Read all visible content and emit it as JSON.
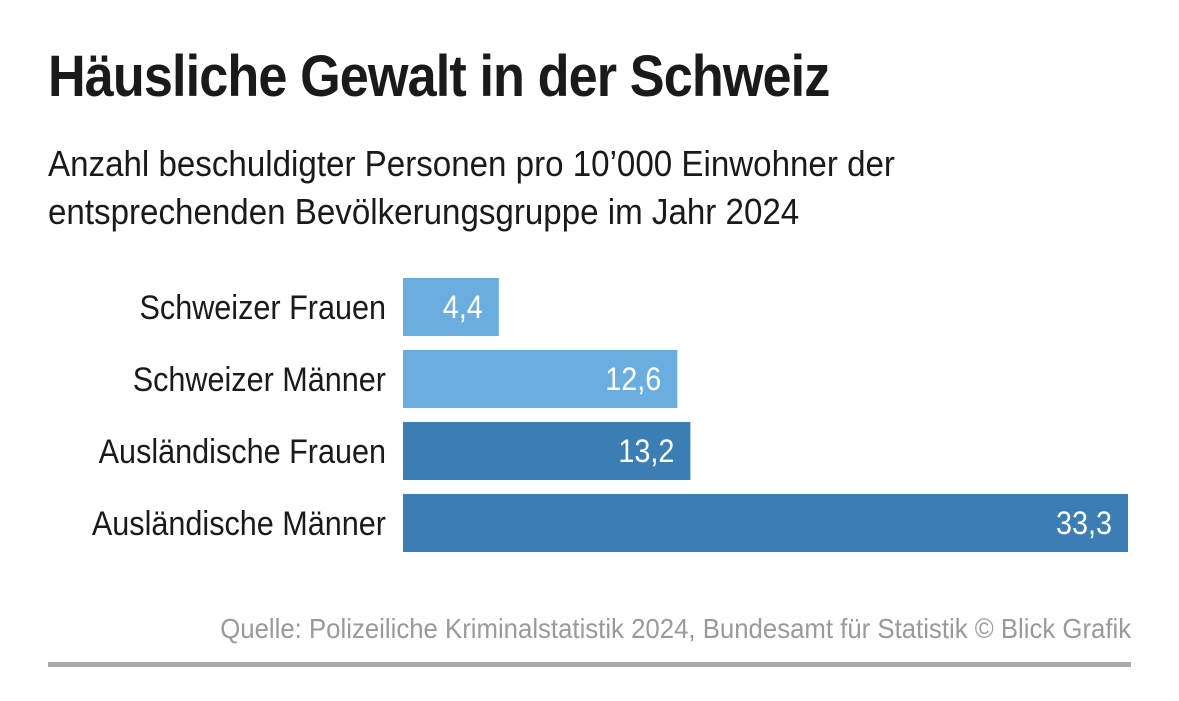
{
  "chart_data": {
    "type": "bar",
    "orientation": "horizontal",
    "title": "Häusliche Gewalt in der Schweiz",
    "subtitle_lines": [
      "Anzahl beschuldigter Personen pro 10’000 Einwohner der",
      "entsprechenden Bevölkerungsgruppe im Jahr 2024"
    ],
    "categories": [
      "Schweizer Frauen",
      "Schweizer Männer",
      "Ausländische Frauen",
      "Ausländische Männer"
    ],
    "values": [
      4.4,
      12.6,
      13.2,
      33.3
    ],
    "value_labels": [
      "4,4",
      "12,6",
      "13,2",
      "33,3"
    ],
    "bar_colors": [
      "#6aaee0",
      "#6aaee0",
      "#3a7eb4",
      "#3a7eb4"
    ],
    "xlim": [
      0,
      33.3
    ],
    "grid": false,
    "legend": "none",
    "source": "Quelle: Polizeiliche Kriminalstatistik 2024, Bundesamt für Statistik © Blick Grafik"
  }
}
